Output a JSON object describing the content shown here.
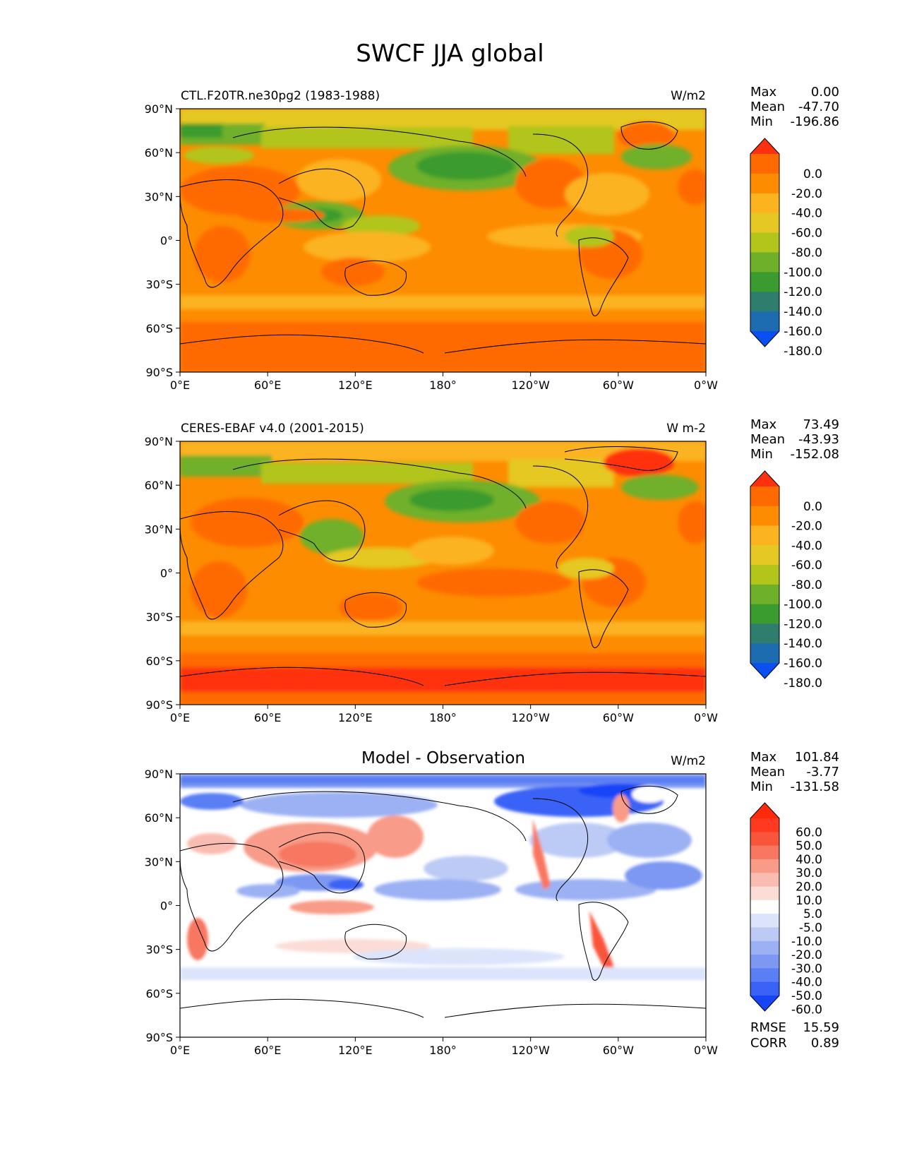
{
  "figure": {
    "title": "SWCF JJA global"
  },
  "axes": {
    "lat_ticks": [
      "90°N",
      "60°N",
      "30°N",
      "0°",
      "30°S",
      "60°S",
      "90°S"
    ],
    "lon_ticks": [
      "0°E",
      "60°E",
      "120°E",
      "180°",
      "120°W",
      "60°W",
      "0°W"
    ]
  },
  "panels": [
    {
      "left_title": "CTL.F20TR.ne30pg2 (1983-1988)",
      "center_title": "",
      "units": "W/m2",
      "stats": {
        "max_label": "Max",
        "max": "0.00",
        "mean_label": "Mean",
        "mean": "-47.70",
        "min_label": "Min",
        "min": "-196.86"
      },
      "colorbar": {
        "labels": [
          "0.0",
          "-20.0",
          "-40.0",
          "-60.0",
          "-80.0",
          "-100.0",
          "-120.0",
          "-140.0",
          "-160.0",
          "-180.0"
        ],
        "colors": [
          "#ff3010",
          "#ff6a00",
          "#fd8c00",
          "#fbb320",
          "#e5c823",
          "#b2c51a",
          "#6fb02a",
          "#3a9b2e",
          "#2f7d6d",
          "#1d6cb0",
          "#0a4ff2"
        ]
      }
    },
    {
      "left_title": "CERES-EBAF v4.0 (2001-2015)",
      "center_title": "",
      "units": "W m-2",
      "stats": {
        "max_label": "Max",
        "max": "73.49",
        "mean_label": "Mean",
        "mean": "-43.93",
        "min_label": "Min",
        "min": "-152.08"
      },
      "colorbar": {
        "labels": [
          "0.0",
          "-20.0",
          "-40.0",
          "-60.0",
          "-80.0",
          "-100.0",
          "-120.0",
          "-140.0",
          "-160.0",
          "-180.0"
        ],
        "colors": [
          "#ff3010",
          "#ff6a00",
          "#fd8c00",
          "#fbb320",
          "#e5c823",
          "#b2c51a",
          "#6fb02a",
          "#3a9b2e",
          "#2f7d6d",
          "#1d6cb0",
          "#0a4ff2"
        ]
      }
    },
    {
      "left_title": "",
      "center_title": "Model - Observation",
      "units": "W/m2",
      "stats": {
        "max_label": "Max",
        "max": "101.84",
        "mean_label": "Mean",
        "mean": "-3.77",
        "min_label": "Min",
        "min": "-131.58"
      },
      "colorbar": {
        "labels": [
          "60.0",
          "50.0",
          "40.0",
          "30.0",
          "20.0",
          "10.0",
          "5.0",
          "-5.0",
          "-10.0",
          "-20.0",
          "-30.0",
          "-40.0",
          "-50.0",
          "-60.0"
        ],
        "colors": [
          "#ff2a0a",
          "#ff3a20",
          "#f9553a",
          "#f77760",
          "#f89b88",
          "#f9bcb0",
          "#fbdcd6",
          "#ffffff",
          "#dce4fb",
          "#bccbf6",
          "#9cb1f3",
          "#7c98f2",
          "#5a7ef4",
          "#3a62f6",
          "#1844f8"
        ]
      },
      "bottom_stats": {
        "rmse_label": "RMSE",
        "rmse": "15.59",
        "corr_label": "CORR",
        "corr": "0.89"
      }
    }
  ],
  "colors": {
    "ocean_orange": "#fd8c00",
    "antarctic_red": "#ff6a00",
    "land_line": "#000000",
    "diff_white": "#ffffff"
  }
}
